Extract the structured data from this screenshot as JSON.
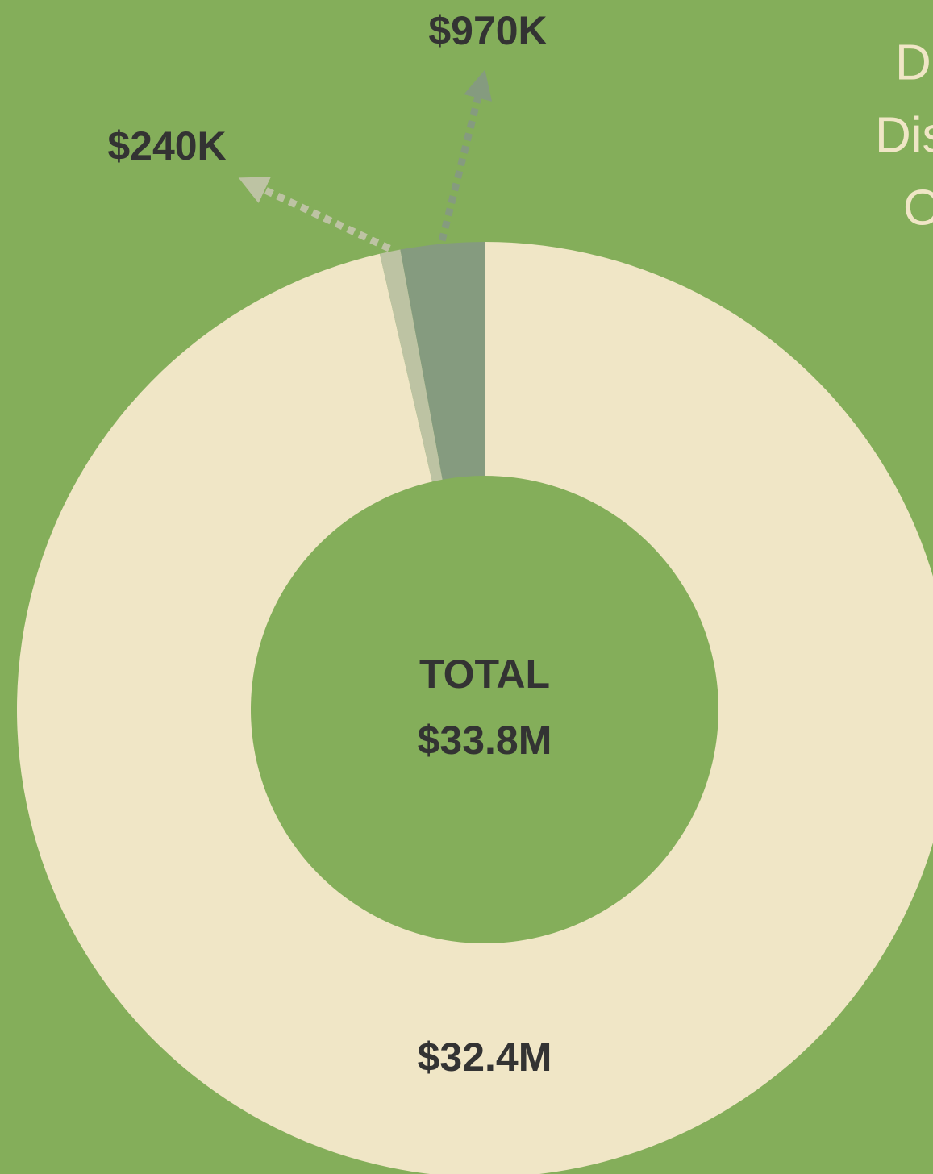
{
  "chart_data": {
    "type": "donut",
    "values": [
      32400000,
      240000,
      970000
    ],
    "value_labels": [
      "$32.4M",
      "$240K",
      "$970K"
    ],
    "colors": [
      "#f0e6c6",
      "#bdc3a3",
      "#859b7f"
    ],
    "center_title": "TOTAL",
    "total": 33800000,
    "total_label": "$33.8M",
    "legend_fragments": [
      "D",
      "Dis",
      "O"
    ]
  }
}
